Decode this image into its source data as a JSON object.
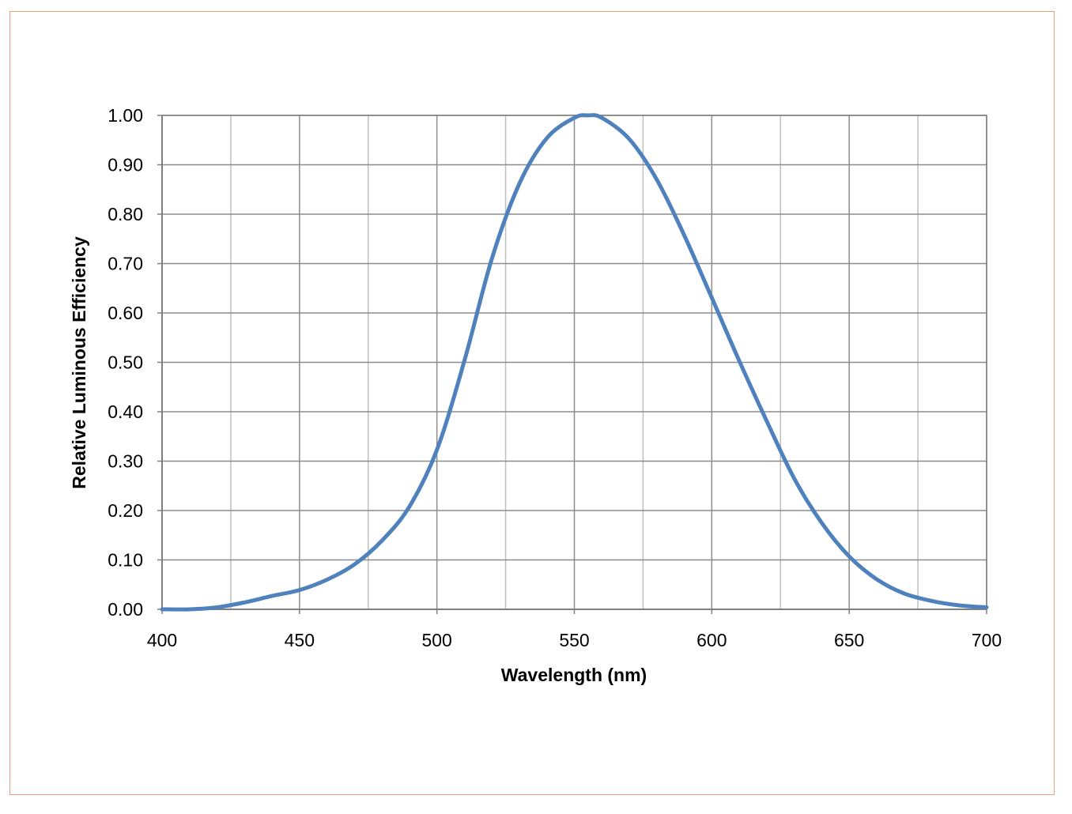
{
  "chart_data": {
    "type": "line",
    "title": "",
    "xlabel": "Wavelength (nm)",
    "ylabel": "Relative Luminous Efficiency",
    "xlim": [
      400,
      700
    ],
    "ylim": [
      0,
      1
    ],
    "x_ticks": [
      "400",
      "450",
      "500",
      "550",
      "600",
      "650",
      "700"
    ],
    "y_ticks": [
      "0.00",
      "0.10",
      "0.20",
      "0.30",
      "0.40",
      "0.50",
      "0.60",
      "0.70",
      "0.80",
      "0.90",
      "1.00"
    ],
    "x_minor_grid": [
      425,
      475,
      525,
      575,
      625,
      675
    ],
    "grid": true,
    "legend": "none",
    "line_color": "#4f81bd",
    "series": [
      {
        "x": [
          400,
          410,
          420,
          430,
          440,
          450,
          460,
          470,
          480,
          490,
          500,
          510,
          520,
          530,
          540,
          550,
          555,
          560,
          570,
          580,
          590,
          600,
          610,
          620,
          630,
          640,
          650,
          660,
          670,
          680,
          690,
          700
        ],
        "values": [
          0.0,
          0.0,
          0.004,
          0.014,
          0.027,
          0.039,
          0.06,
          0.091,
          0.139,
          0.208,
          0.323,
          0.503,
          0.71,
          0.862,
          0.954,
          0.995,
          1.0,
          0.995,
          0.952,
          0.87,
          0.757,
          0.631,
          0.503,
          0.381,
          0.265,
          0.175,
          0.107,
          0.061,
          0.032,
          0.017,
          0.008,
          0.004
        ]
      }
    ]
  }
}
